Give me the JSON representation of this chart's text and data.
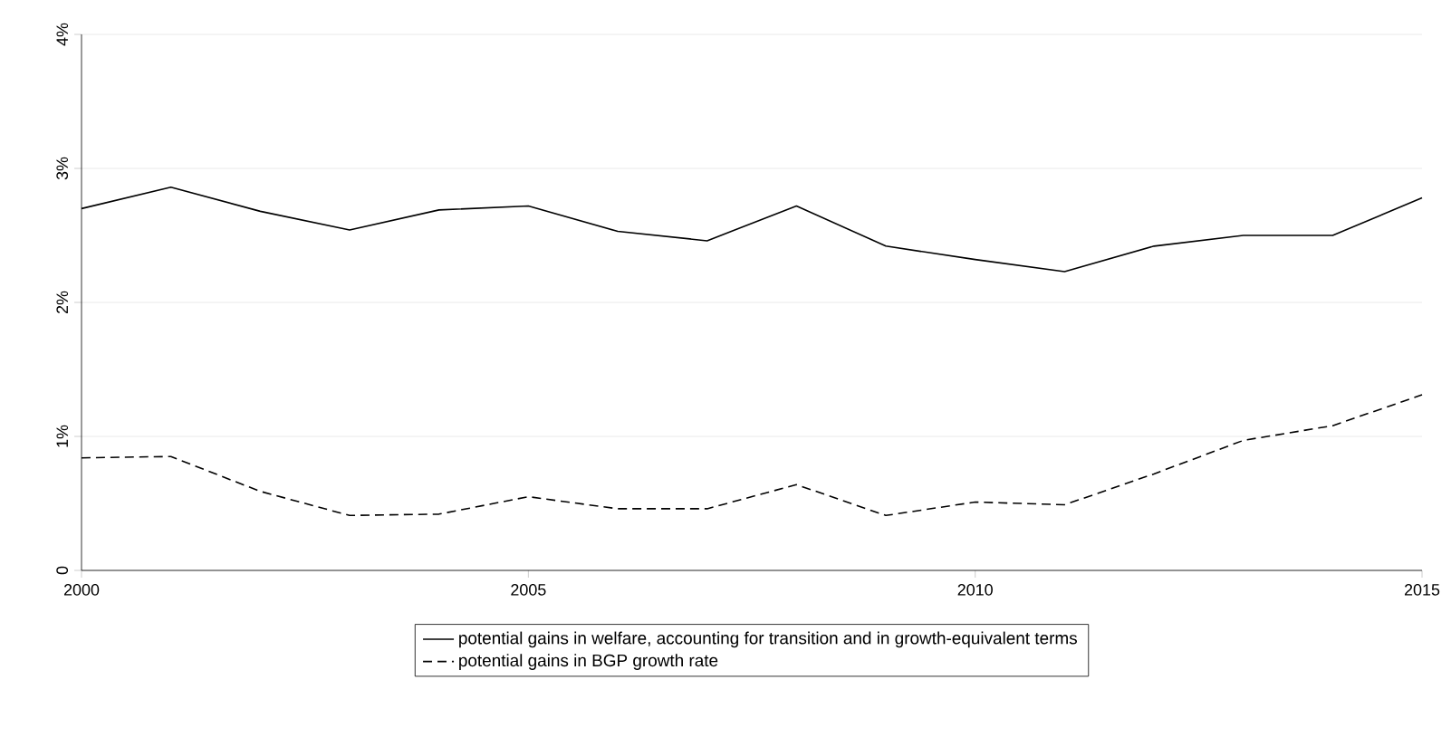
{
  "chart_data": {
    "type": "line",
    "x": [
      2000,
      2001,
      2002,
      2003,
      2004,
      2005,
      2006,
      2007,
      2008,
      2009,
      2010,
      2011,
      2012,
      2013,
      2014,
      2015
    ],
    "series": [
      {
        "name": "potential gains in welfare, accounting for transition and in growth-equivalent terms",
        "color": "#000000",
        "line_style": "solid",
        "values": [
          2.7,
          2.86,
          2.68,
          2.54,
          2.69,
          2.72,
          2.53,
          2.46,
          2.72,
          2.42,
          2.32,
          2.23,
          2.42,
          2.5,
          2.5,
          2.78
        ]
      },
      {
        "name": "potential gains in BGP growth rate",
        "color": "#000000",
        "line_style": "dashed",
        "values": [
          0.84,
          0.85,
          0.59,
          0.41,
          0.42,
          0.55,
          0.46,
          0.46,
          0.64,
          0.41,
          0.51,
          0.49,
          0.72,
          0.97,
          1.08,
          1.31
        ]
      }
    ],
    "xlim": [
      2000,
      2015
    ],
    "xticks": [
      2000,
      2005,
      2010,
      2015
    ],
    "ylim": [
      0,
      4
    ],
    "yticks": [
      0,
      {
        "value": 1,
        "label": "1%"
      },
      {
        "value": 2,
        "label": "2%"
      },
      {
        "value": 3,
        "label": "3%"
      },
      {
        "value": 4,
        "label": "4%"
      }
    ],
    "grid": "y",
    "legend": "bottom",
    "marker": "none"
  }
}
